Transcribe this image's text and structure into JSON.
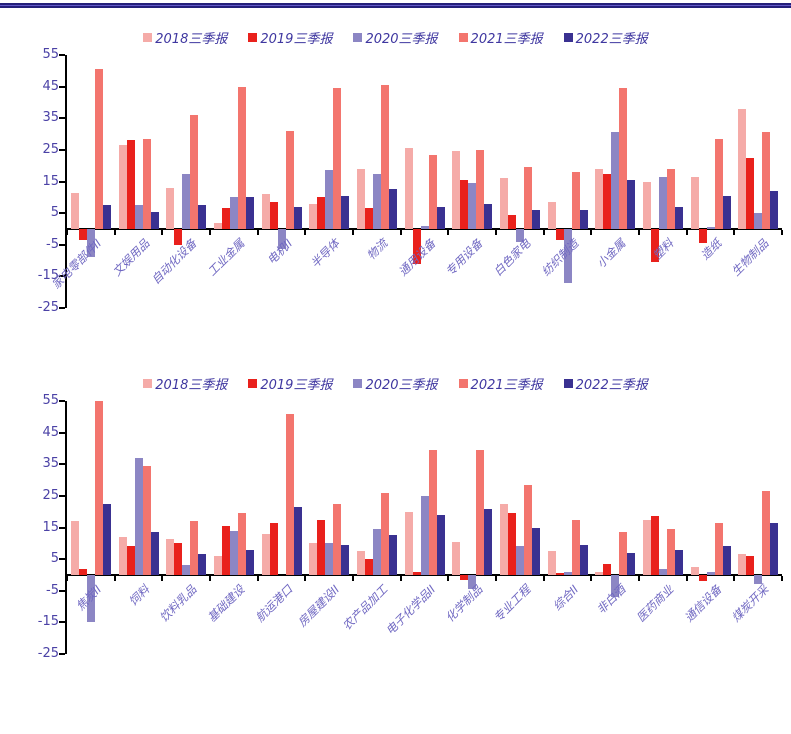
{
  "page": {
    "background": "#ffffff",
    "header_rule_color": "#241f7a"
  },
  "series_colors": [
    "#F5ABA8",
    "#E9211C",
    "#8C86C4",
    "#F3756E",
    "#3A3191"
  ],
  "chart_data": [
    {
      "type": "bar",
      "title": "",
      "xlabel": "",
      "ylabel": "",
      "ylim": [
        -25,
        55
      ],
      "yticks": [
        55,
        45,
        35,
        25,
        15,
        5,
        -5,
        -15,
        -25
      ],
      "grid": false,
      "legend_position": "top-center",
      "categories": [
        "家电零部件II",
        "文娱用品",
        "自动化设备",
        "工业金属",
        "电机II",
        "半导体",
        "物流",
        "通用设备",
        "专用设备",
        "白色家电",
        "纺织制造",
        "小金属",
        "塑料",
        "造纸",
        "生物制品"
      ],
      "series": [
        {
          "name": "2018三季报",
          "color": "#F5ABA8",
          "values": [
            11.5,
            26.5,
            13,
            2,
            11,
            8,
            19,
            25.5,
            24.5,
            16,
            8.5,
            19,
            15,
            16.5,
            38
          ]
        },
        {
          "name": "2019三季报",
          "color": "#E9211C",
          "values": [
            -3.5,
            28,
            -5,
            6.5,
            8.5,
            10,
            6.5,
            -11,
            15.5,
            4.5,
            -3.5,
            17.5,
            -10.5,
            -4.5,
            22.5
          ]
        },
        {
          "name": "2020三季报",
          "color": "#8C86C4",
          "values": [
            -9,
            7.5,
            17.5,
            10,
            -6.5,
            18.5,
            17.5,
            1,
            14.5,
            -4,
            -17,
            30.5,
            16.5,
            0.5,
            5
          ]
        },
        {
          "name": "2021三季报",
          "color": "#F3756E",
          "values": [
            50.5,
            28.5,
            36,
            45,
            31,
            44.5,
            45.5,
            23.5,
            25,
            19.5,
            18,
            44.5,
            19,
            28.5,
            30.5
          ]
        },
        {
          "name": "2022三季报",
          "color": "#3A3191",
          "values": [
            7.5,
            5.5,
            7.5,
            10,
            7,
            10.5,
            12.5,
            7,
            8,
            6,
            6,
            15.5,
            7,
            10.5,
            12
          ]
        }
      ]
    },
    {
      "type": "bar",
      "title": "",
      "xlabel": "",
      "ylabel": "",
      "ylim": [
        -25,
        55
      ],
      "yticks": [
        55,
        45,
        35,
        25,
        15,
        5,
        -5,
        -15,
        -25
      ],
      "grid": false,
      "legend_position": "top-center",
      "categories": [
        "焦炭II",
        "饲料",
        "饮料乳品",
        "基础建设",
        "航运港口",
        "房屋建设II",
        "农产品加工",
        "电子化学品II",
        "化学制品",
        "专业工程",
        "综合II",
        "非白酒",
        "医药商业",
        "通信设备",
        "煤炭开采"
      ],
      "series": [
        {
          "name": "2018三季报",
          "color": "#F5ABA8",
          "values": [
            17,
            12,
            11.5,
            6,
            13,
            10,
            7.5,
            20,
            10.5,
            22.5,
            7.5,
            1,
            17.5,
            2.5,
            6.5
          ]
        },
        {
          "name": "2019三季报",
          "color": "#E9211C",
          "values": [
            2,
            9,
            10,
            15.5,
            16.5,
            17.5,
            5,
            1,
            -1.5,
            19.5,
            0.5,
            3.5,
            18.5,
            -2,
            6
          ]
        },
        {
          "name": "2020三季报",
          "color": "#8C86C4",
          "values": [
            -15,
            37,
            3,
            14,
            0,
            10,
            14.5,
            25,
            -4.5,
            9,
            1,
            -7,
            2,
            1,
            -3
          ]
        },
        {
          "name": "2021三季报",
          "color": "#F3756E",
          "values": [
            55,
            34.5,
            17,
            19.5,
            51,
            22.5,
            26,
            39.5,
            39.5,
            28.5,
            17.5,
            13.5,
            14.5,
            16.5,
            26.5
          ]
        },
        {
          "name": "2022三季报",
          "color": "#3A3191",
          "values": [
            22.5,
            13.5,
            6.5,
            8,
            21.5,
            9.5,
            12.5,
            19,
            21,
            15,
            9.5,
            7,
            8,
            9,
            16.5
          ]
        }
      ]
    }
  ]
}
